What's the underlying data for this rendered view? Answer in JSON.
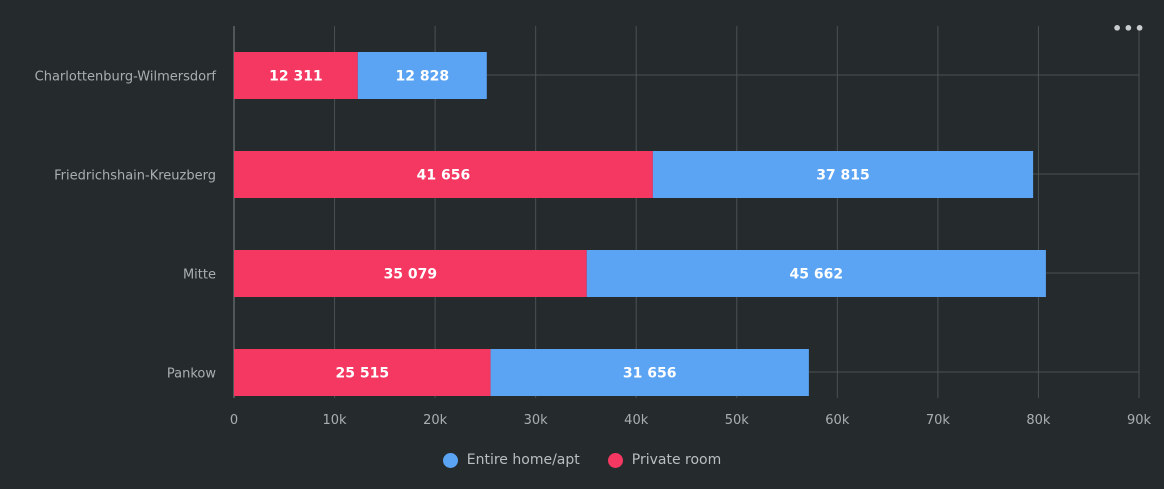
{
  "menu": {
    "icon": "more-horizontal-icon",
    "glyph": "•••"
  },
  "chart_data": {
    "type": "bar",
    "orientation": "horizontal",
    "stacked": true,
    "categories": [
      "Charlottenburg-Wilmersdorf",
      "Friedrichshain-Kreuzberg",
      "Mitte",
      "Pankow"
    ],
    "series": [
      {
        "name": "Private room",
        "values": [
          12311,
          41656,
          35079,
          25515
        ],
        "labels": [
          "12 311",
          "41 656",
          "35 079",
          "25 515"
        ]
      },
      {
        "name": "Entire home/apt",
        "values": [
          12828,
          37815,
          45662,
          31656
        ],
        "labels": [
          "12 828",
          "37 815",
          "45 662",
          "31 656"
        ]
      }
    ],
    "xlim": [
      0,
      90000
    ],
    "xticks": [
      0,
      10000,
      20000,
      30000,
      40000,
      50000,
      60000,
      70000,
      80000,
      90000
    ],
    "xtick_labels": [
      "0",
      "10k",
      "20k",
      "30k",
      "40k",
      "50k",
      "60k",
      "70k",
      "80k",
      "90k"
    ],
    "grid": true,
    "legend_position": "bottom-center",
    "legend_order": [
      "Entire home/apt",
      "Private room"
    ],
    "colors": {
      "Private room": "#f53862",
      "Entire home/apt": "#5ba4f4",
      "grid": "#4a5153",
      "axis_text": "#a9afb1",
      "bar_label": "#ffffff"
    }
  }
}
